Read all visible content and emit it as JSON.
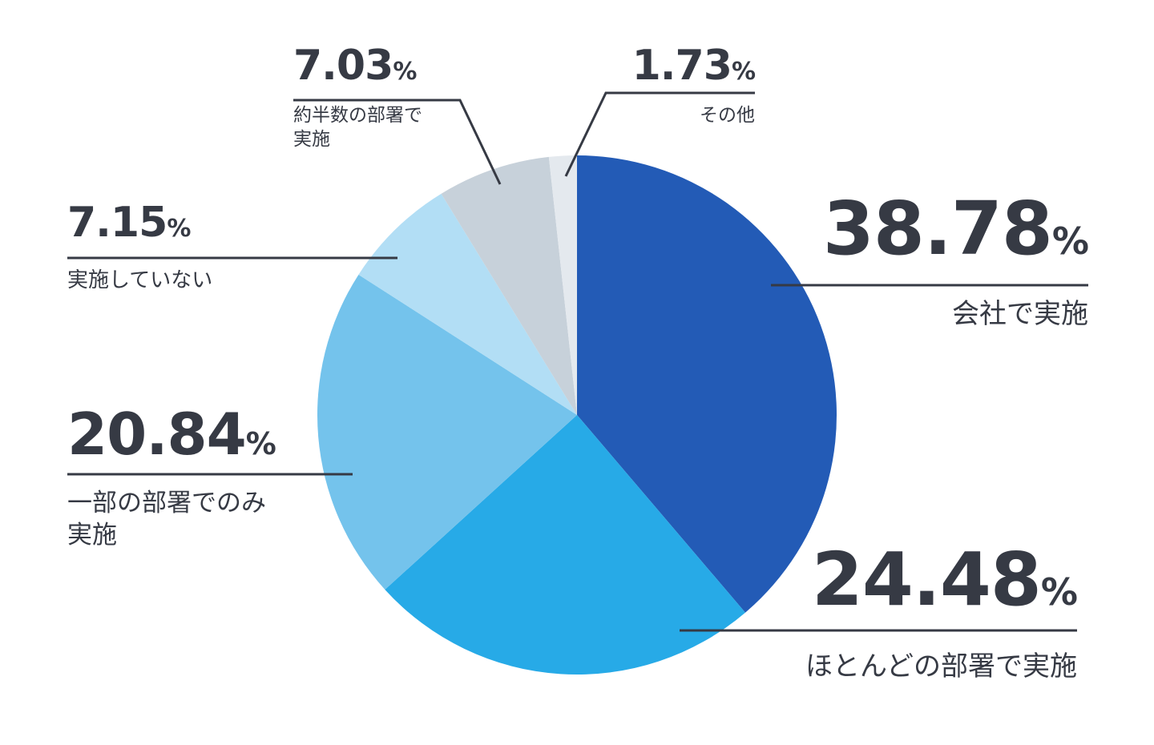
{
  "chart_data": {
    "type": "pie",
    "slices": [
      {
        "label": "会社で実施",
        "value": 38.78,
        "display": "38.78",
        "unit": "%",
        "color": "#235bb6"
      },
      {
        "label": "ほとんどの部署で実施",
        "value": 24.48,
        "display": "24.48",
        "unit": "%",
        "color": "#27aae7"
      },
      {
        "label": "一部の部署でのみ実施",
        "label_lines": [
          "一部の部署でのみ",
          "実施"
        ],
        "value": 20.84,
        "display": "20.84",
        "unit": "%",
        "color": "#74c3ec"
      },
      {
        "label": "実施していない",
        "value": 7.15,
        "display": "7.15",
        "unit": "%",
        "color": "#b2def5"
      },
      {
        "label": "約半数の部署で実施",
        "label_lines": [
          "約半数の部署で",
          "実施"
        ],
        "value": 7.03,
        "display": "7.03",
        "unit": "%",
        "color": "#c7d1da"
      },
      {
        "label": "その他",
        "value": 1.73,
        "display": "1.73",
        "unit": "%",
        "color": "#e4e9ee"
      }
    ],
    "start": "12 o'clock",
    "direction": "clockwise",
    "legend": "none"
  }
}
